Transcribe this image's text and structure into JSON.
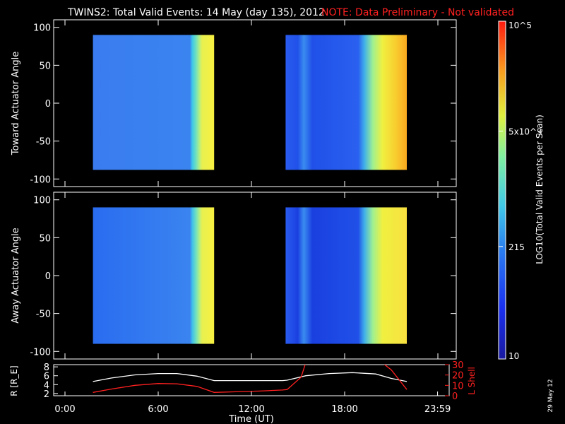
{
  "header": {
    "title": "TWINS2: Total Valid Events: 14 May (day 135), 2012",
    "note": "NOTE: Data Preliminary - Not validated"
  },
  "footer": {
    "date_stamp": "29 May 12"
  },
  "colors": {
    "background": "#000000",
    "note": "#ff2020",
    "r_line": "#ffffff",
    "lshell_line": "#ff2020"
  },
  "chart_data": [
    {
      "type": "heatmap",
      "ylabel": "Toward Actuator Angle",
      "ylim": [
        -110,
        110
      ],
      "yticks": [
        100,
        50,
        0,
        -50,
        -100
      ],
      "xlim": [
        0,
        24
      ],
      "segments": [
        {
          "start_h": 1.8,
          "end_h": 9.6,
          "angle_min": -88,
          "angle_max": 90,
          "stops": [
            [
              0,
              "#3a7cf0"
            ],
            [
              0.8,
              "#3a84f0"
            ],
            [
              0.82,
              "#3ec8e8"
            ],
            [
              0.85,
              "#70e0c0"
            ],
            [
              0.88,
              "#b8f080"
            ],
            [
              0.9,
              "#e8f050"
            ],
            [
              1,
              "#f8f040"
            ]
          ]
        },
        {
          "start_h": 14.2,
          "end_h": 22.0,
          "angle_min": -88,
          "angle_max": 90,
          "stops": [
            [
              0,
              "#2a5cf0"
            ],
            [
              0.1,
              "#2050e8"
            ],
            [
              0.15,
              "#3a8cf0"
            ],
            [
              0.22,
              "#2050e8"
            ],
            [
              0.6,
              "#2a60f0"
            ],
            [
              0.65,
              "#40b0ea"
            ],
            [
              0.72,
              "#a0f090"
            ],
            [
              0.8,
              "#f0f040"
            ],
            [
              0.9,
              "#f8d030"
            ],
            [
              1,
              "#f8a820"
            ]
          ]
        }
      ]
    },
    {
      "type": "heatmap",
      "ylabel": "Away Actuator Angle",
      "ylim": [
        -110,
        110
      ],
      "yticks": [
        100,
        50,
        0,
        -50,
        -100
      ],
      "xlim": [
        0,
        24
      ],
      "segments": [
        {
          "start_h": 1.8,
          "end_h": 9.6,
          "angle_min": -90,
          "angle_max": 90,
          "stops": [
            [
              0,
              "#2a6cf0"
            ],
            [
              0.8,
              "#3a84f0"
            ],
            [
              0.82,
              "#40c0ea"
            ],
            [
              0.85,
              "#70e0c0"
            ],
            [
              0.88,
              "#b8f080"
            ],
            [
              0.9,
              "#e8f050"
            ],
            [
              1,
              "#f8f040"
            ]
          ]
        },
        {
          "start_h": 14.2,
          "end_h": 22.0,
          "angle_min": -90,
          "angle_max": 90,
          "stops": [
            [
              0,
              "#2a5cf0"
            ],
            [
              0.1,
              "#1a40e0"
            ],
            [
              0.15,
              "#3a8cf0"
            ],
            [
              0.22,
              "#1a40e0"
            ],
            [
              0.6,
              "#2050e8"
            ],
            [
              0.65,
              "#40b0ea"
            ],
            [
              0.72,
              "#a0f090"
            ],
            [
              0.8,
              "#f0f040"
            ],
            [
              1,
              "#f8e040"
            ]
          ]
        }
      ]
    },
    {
      "type": "line",
      "xlabel": "Time (UT)",
      "xlim": [
        0,
        24
      ],
      "xtick_labels": [
        "0:00",
        "6:00",
        "12:00",
        "18:00",
        "23:59"
      ],
      "xtick_hours": [
        0,
        6,
        12,
        18,
        23.98
      ],
      "ylabel_left": "R [R_E]",
      "ylim_left": [
        1.5,
        8.5
      ],
      "yticks_left": [
        2,
        4,
        6,
        8
      ],
      "ylabel_right": "L Shell",
      "ylim_right": [
        0,
        30
      ],
      "yticks_right": [
        0,
        10,
        20,
        30
      ],
      "series": [
        {
          "axis": "left",
          "x": [
            1.8,
            3,
            4.5,
            6,
            7.2,
            8.5,
            9.6,
            11,
            12.5,
            14,
            14.3,
            15.5,
            17,
            18.5,
            20,
            21,
            22
          ],
          "y": [
            4.7,
            5.5,
            6.2,
            6.5,
            6.5,
            5.9,
            4.9,
            4.9,
            4.9,
            4.9,
            5.0,
            6.0,
            6.5,
            6.7,
            6.4,
            5.4,
            4.7
          ]
        },
        {
          "axis": "right",
          "x": [
            1.8,
            3,
            4.5,
            6,
            7.2,
            8.5,
            9.6,
            11,
            12.5,
            14,
            14.3,
            15.2,
            15.5
          ],
          "y": [
            3.2,
            6.5,
            10.0,
            11.8,
            11.5,
            9.0,
            3.2,
            3.8,
            4.5,
            5.5,
            6.0,
            18.0,
            32.0
          ]
        },
        {
          "axis": "right",
          "x": [
            20.4,
            21,
            22
          ],
          "y": [
            32.0,
            25.0,
            6.0
          ]
        }
      ]
    },
    {
      "type": "colorbar",
      "label": "LOG10(Total Valid Events per Scan)",
      "range_log": [
        1,
        5
      ],
      "tick_labels": [
        {
          "text": "10^5",
          "value": 100000
        },
        {
          "text": "5x10^3",
          "value": 5000
        },
        {
          "text": "215",
          "value": 215
        },
        {
          "text": "10",
          "value": 10
        }
      ]
    }
  ]
}
